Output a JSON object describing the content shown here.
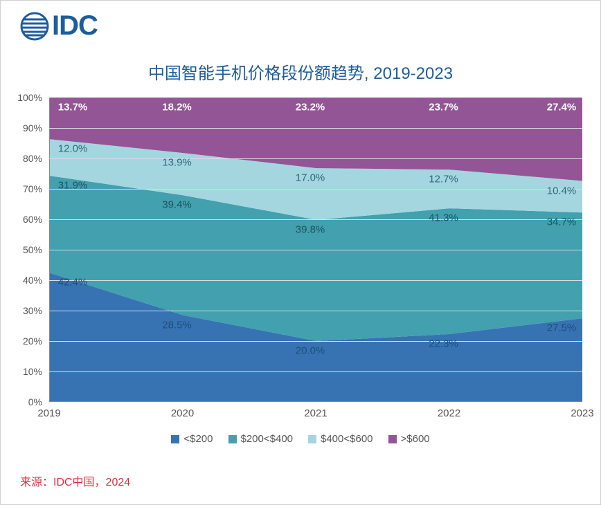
{
  "logo": {
    "text": "IDC",
    "color": "#1e5d9c"
  },
  "title": "中国智能手机价格段份额趋势, 2019-2023",
  "title_color": "#1e5d9c",
  "title_fontsize": 24,
  "source": "来源：IDC中国，2024",
  "source_color": "#d82f3c",
  "chart": {
    "type": "stacked-area-100",
    "background_color": "#ffffff",
    "grid_color": "#dcdcdc",
    "axis_label_color": "#555555",
    "axis_fontsize": 14,
    "label_fontsize": 15,
    "ylim": [
      0,
      100
    ],
    "ytick_step": 10,
    "ytick_suffix": "%",
    "categories": [
      "2019",
      "2020",
      "2021",
      "2022",
      "2023"
    ],
    "series": [
      {
        "name": "<$200",
        "color": "#3773b3",
        "label_color": "#1f4e79",
        "values": [
          42.4,
          28.5,
          20.0,
          22.3,
          27.5
        ]
      },
      {
        "name": "$200<$400",
        "color": "#42a0af",
        "label_color": "#21525a",
        "values": [
          31.9,
          39.4,
          39.8,
          41.3,
          34.7
        ]
      },
      {
        "name": "$400<$600",
        "color": "#a4d6e0",
        "label_color": "#2f6a74",
        "values": [
          12.0,
          13.9,
          17.0,
          12.7,
          10.4
        ]
      },
      {
        "name": ">$600",
        "color": "#935596",
        "label_color": "#ffffff",
        "label_bold": true,
        "values": [
          13.7,
          18.2,
          23.2,
          23.7,
          27.4
        ]
      }
    ]
  }
}
